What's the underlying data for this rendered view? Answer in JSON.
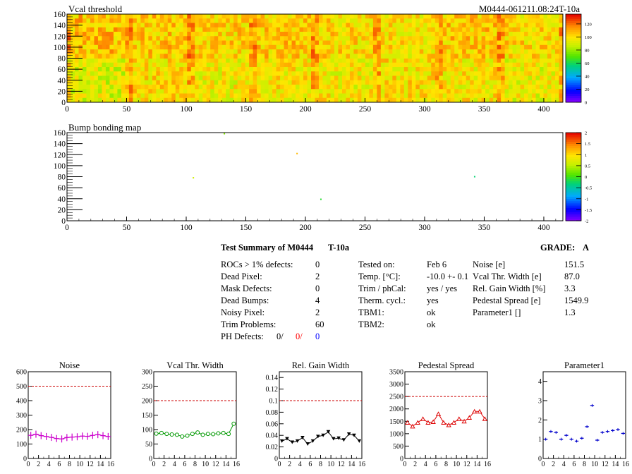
{
  "chart_data": [
    {
      "type": "heatmap",
      "title": "Vcal threshold",
      "corner_label": "M0444-061211.08:24T-10a",
      "xlim": [
        0,
        416
      ],
      "ylim": [
        0,
        160
      ],
      "x_ticks": [
        0,
        50,
        100,
        150,
        200,
        250,
        300,
        350,
        400
      ],
      "y_ticks": [
        0,
        20,
        40,
        60,
        80,
        100,
        120,
        140,
        160
      ],
      "z_range": [
        0,
        135
      ],
      "colorbar_ticks": [
        0,
        20,
        40,
        60,
        80,
        100,
        120
      ],
      "roc_grid": {
        "cols": 8,
        "rows": 2
      },
      "roc_mean_values": [
        [
          92,
          100,
          96,
          98,
          97,
          100,
          98,
          95
        ],
        [
          106,
          104,
          102,
          104,
          101,
          99,
          104,
          101
        ]
      ]
    },
    {
      "type": "heatmap",
      "title": "Bump bonding map",
      "xlim": [
        0,
        416
      ],
      "ylim": [
        0,
        160
      ],
      "x_ticks": [
        0,
        50,
        100,
        150,
        200,
        250,
        300,
        350,
        400
      ],
      "y_ticks": [
        0,
        20,
        40,
        60,
        80,
        100,
        120,
        140,
        160
      ],
      "z_range": [
        -2,
        2
      ],
      "colorbar_ticks": [
        -2,
        -1.5,
        -1,
        -0.5,
        0,
        0.5,
        1,
        1.5,
        2
      ],
      "points": [
        {
          "x": 132,
          "y": 158,
          "z": 0.3
        },
        {
          "x": 193,
          "y": 122,
          "z": 1.2
        },
        {
          "x": 106,
          "y": 78,
          "z": 0.6
        },
        {
          "x": 213,
          "y": 39,
          "z": -0.1
        },
        {
          "x": 342,
          "y": 80,
          "z": -0.3
        }
      ]
    },
    {
      "type": "line",
      "title": "Noise",
      "color": "#cc00cc",
      "marker": "cross",
      "xlim": [
        0,
        16
      ],
      "ylim": [
        0,
        600
      ],
      "x_ticks": [
        0,
        2,
        4,
        6,
        8,
        10,
        12,
        14,
        16
      ],
      "y_ticks": [
        0,
        100,
        200,
        300,
        400,
        500,
        600
      ],
      "threshold": 500,
      "x": [
        0.5,
        1.5,
        2.5,
        3.5,
        4.5,
        5.5,
        6.5,
        7.5,
        8.5,
        9.5,
        10.5,
        11.5,
        12.5,
        13.5,
        14.5,
        15.5
      ],
      "values": [
        160,
        168,
        158,
        152,
        146,
        138,
        135,
        145,
        148,
        150,
        155,
        153,
        160,
        165,
        158,
        152
      ]
    },
    {
      "type": "line",
      "title": "Vcal Thr. Width",
      "color": "#009900",
      "marker": "circle",
      "xlim": [
        0,
        16
      ],
      "ylim": [
        0,
        300
      ],
      "x_ticks": [
        0,
        2,
        4,
        6,
        8,
        10,
        12,
        14,
        16
      ],
      "y_ticks": [
        0,
        50,
        100,
        150,
        200,
        250,
        300
      ],
      "threshold": 200,
      "x": [
        0.5,
        1.5,
        2.5,
        3.5,
        4.5,
        5.5,
        6.5,
        7.5,
        8.5,
        9.5,
        10.5,
        11.5,
        12.5,
        13.5,
        14.5,
        15.5
      ],
      "values": [
        86,
        88,
        85,
        83,
        82,
        76,
        79,
        85,
        90,
        82,
        85,
        84,
        87,
        88,
        85,
        120
      ]
    },
    {
      "type": "line",
      "title": "Rel. Gain Width",
      "color": "#000000",
      "marker": "triangle-down",
      "xlim": [
        0,
        16
      ],
      "ylim": [
        0,
        0.15
      ],
      "x_ticks": [
        0,
        2,
        4,
        6,
        8,
        10,
        12,
        14,
        16
      ],
      "y_ticks": [
        0,
        0.02,
        0.04,
        0.06,
        0.08,
        0.1,
        0.12,
        0.14
      ],
      "threshold": 0.1,
      "x": [
        0.5,
        1.5,
        2.5,
        3.5,
        4.5,
        5.5,
        6.5,
        7.5,
        8.5,
        9.5,
        10.5,
        11.5,
        12.5,
        13.5,
        14.5,
        15.5
      ],
      "values": [
        0.03,
        0.034,
        0.028,
        0.03,
        0.036,
        0.025,
        0.03,
        0.038,
        0.04,
        0.046,
        0.034,
        0.035,
        0.032,
        0.042,
        0.04,
        0.03
      ]
    },
    {
      "type": "line",
      "title": "Pedestal Spread",
      "color": "#dd0000",
      "marker": "triangle-up",
      "xlim": [
        0,
        16
      ],
      "ylim": [
        0,
        3500
      ],
      "x_ticks": [
        0,
        2,
        4,
        6,
        8,
        10,
        12,
        14,
        16
      ],
      "y_ticks": [
        0,
        500,
        1000,
        1500,
        2000,
        2500,
        3000,
        3500
      ],
      "threshold": 2500,
      "x": [
        0.5,
        1.5,
        2.5,
        3.5,
        4.5,
        5.5,
        6.5,
        7.5,
        8.5,
        9.5,
        10.5,
        11.5,
        12.5,
        13.5,
        14.5,
        15.5
      ],
      "values": [
        1450,
        1300,
        1450,
        1600,
        1450,
        1480,
        1800,
        1450,
        1350,
        1450,
        1600,
        1500,
        1650,
        1900,
        1900,
        1600
      ]
    },
    {
      "type": "scatter",
      "title": "Parameter1",
      "color": "#0000cc",
      "marker": "errorbar",
      "xlim": [
        0,
        16
      ],
      "ylim": [
        0,
        4.5
      ],
      "x_ticks": [
        0,
        2,
        4,
        6,
        8,
        10,
        12,
        14,
        16
      ],
      "y_ticks": [
        0,
        1,
        2,
        3,
        4
      ],
      "x": [
        0.5,
        1.5,
        2.5,
        3.5,
        4.5,
        5.5,
        6.5,
        7.5,
        8.5,
        9.5,
        10.5,
        11.5,
        12.5,
        13.5,
        14.5,
        15.5
      ],
      "values": [
        1.0,
        1.4,
        1.35,
        1.0,
        1.2,
        1.0,
        0.9,
        1.05,
        1.65,
        2.75,
        0.95,
        1.35,
        1.4,
        1.45,
        1.5,
        1.3
      ]
    }
  ],
  "summary": {
    "title": "Test Summary of M0444",
    "code": "T-10a",
    "grade_label": "GRADE:",
    "grade": "A",
    "left": [
      {
        "label": "ROCs > 1% defects:",
        "value": "0"
      },
      {
        "label": "Dead Pixel:",
        "value": "2"
      },
      {
        "label": "Mask Defects:",
        "value": "0"
      },
      {
        "label": "Dead Bumps:",
        "value": "4"
      },
      {
        "label": "Noisy Pixel:",
        "value": "2"
      },
      {
        "label": "Trim Problems:",
        "value": "60"
      }
    ],
    "ph_label": "PH Defects:",
    "ph_values": [
      "0/",
      "0/",
      "0"
    ],
    "ph_colors": [
      "#000000",
      "#ff0000",
      "#0000ff"
    ],
    "middle": [
      {
        "label": "Tested on:",
        "value": "Feb 6"
      },
      {
        "label": "Temp. [°C]:",
        "value": "-10.0 +- 0.1"
      },
      {
        "label": "Trim / phCal:",
        "value": "yes / yes"
      },
      {
        "label": "Therm. cycl.:",
        "value": "yes"
      },
      {
        "label": "TBM1:",
        "value": "ok"
      },
      {
        "label": "TBM2:",
        "value": "ok"
      }
    ],
    "right": [
      {
        "label": "Noise [e]",
        "value": "151.5"
      },
      {
        "label": "Vcal Thr. Width [e]",
        "value": "87.0"
      },
      {
        "label": "Rel. Gain Width [%]",
        "value": "3.3"
      },
      {
        "label": "Pedestal Spread [e]",
        "value": "1549.9"
      },
      {
        "label": "Parameter1 []",
        "value": "1.3"
      }
    ]
  }
}
